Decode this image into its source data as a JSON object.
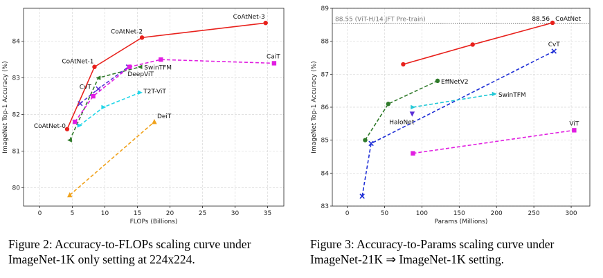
{
  "figures": [
    {
      "caption": "Figure 2: Accuracy-to-FLOPs scaling curve under ImageNet-1K only setting at 224x224.",
      "chart_data": {
        "type": "line",
        "xlabel": "FLOPs (Billions)",
        "ylabel": "ImageNet Top-1 Accuracy (%)",
        "xlim": [
          -2.5,
          37.5
        ],
        "ylim": [
          79.5,
          84.9
        ],
        "xticks": [
          0,
          5,
          10,
          15,
          20,
          25,
          30,
          35
        ],
        "yticks": [
          80,
          81,
          82,
          83,
          84
        ],
        "grid": true,
        "series": [
          {
            "name": "CoAtNet",
            "color": "#e8211c",
            "dash": "",
            "marker": "circle",
            "x": [
              4.2,
              8.4,
              15.7,
              34.7
            ],
            "y": [
              81.6,
              83.3,
              84.1,
              84.5
            ]
          },
          {
            "name": "DeepViT",
            "color": "#2f7a2a",
            "dash": "5,3",
            "marker": "triangle-left",
            "x": [
              4.6,
              9.0,
              15.4
            ],
            "y": [
              81.3,
              83.0,
              83.3
            ]
          },
          {
            "name": "CvT",
            "color": "#5b2fd6",
            "dash": "5,3",
            "marker": "x",
            "x": [
              6.2,
              9.0,
              13.6
            ],
            "y": [
              82.3,
              82.7,
              83.3
            ]
          },
          {
            "name": "SwinTFM",
            "color": "#e11ee1",
            "dash": "5,3",
            "marker": "square",
            "x": [
              5.4,
              8.2,
              13.8,
              18.6,
              36.0
            ],
            "y": [
              81.8,
              82.5,
              83.3,
              83.5,
              83.4
            ]
          },
          {
            "name": "T2T-ViT",
            "color": "#22d6e8",
            "dash": "5,3",
            "marker": "triangle-right",
            "x": [
              6.1,
              9.8,
              15.4
            ],
            "y": [
              81.7,
              82.2,
              82.6
            ]
          },
          {
            "name": "DeiT",
            "color": "#f0a21c",
            "dash": "5,3",
            "marker": "triangle-up",
            "x": [
              4.6,
              17.6
            ],
            "y": [
              79.8,
              81.8
            ]
          }
        ],
        "annotations": [
          {
            "text": "CoAtNet-3",
            "x": 34.7,
            "y": 84.5,
            "anchor": "end",
            "dx": -1,
            "dy": -6
          },
          {
            "text": "CoAtNet-2",
            "x": 15.7,
            "y": 84.1,
            "anchor": "end",
            "dx": 1,
            "dy": -6
          },
          {
            "text": "CoAtNet-1",
            "x": 8.4,
            "y": 83.3,
            "anchor": "end",
            "dx": -1,
            "dy": -5
          },
          {
            "text": "CoAtNet-0",
            "x": 4.2,
            "y": 81.6,
            "anchor": "end",
            "dx": -2,
            "dy": -2
          },
          {
            "text": "CaiT",
            "x": 36.0,
            "y": 83.4,
            "anchor": "middle",
            "dx": -1,
            "dy": -7
          },
          {
            "text": "SwinTFM",
            "x": 15.4,
            "y": 83.3,
            "anchor": "start",
            "dx": 6,
            "dy": 4
          },
          {
            "text": "DeepViT",
            "x": 13.6,
            "y": 83.05,
            "anchor": "start",
            "dx": -1,
            "dy": 0
          },
          {
            "text": "CvT",
            "x": 6.2,
            "y": 82.7,
            "anchor": "start",
            "dx": -1,
            "dy": 0
          },
          {
            "text": "T2T-ViT",
            "x": 15.4,
            "y": 82.6,
            "anchor": "start",
            "dx": 5,
            "dy": 1
          },
          {
            "text": "DeiT",
            "x": 17.6,
            "y": 81.8,
            "anchor": "start",
            "dx": 4,
            "dy": -5
          }
        ]
      }
    },
    {
      "caption": "Figure 3: Accuracy-to-Params scaling curve under ImageNet-21K ⇒ ImageNet-1K setting.",
      "chart_data": {
        "type": "line",
        "xlabel": "Params (Millions)",
        "ylabel": "ImageNet Top-1 Accuracy (%)",
        "xlim": [
          -20,
          325
        ],
        "ylim": [
          83,
          89
        ],
        "xticks": [
          0,
          50,
          100,
          150,
          200,
          250,
          300
        ],
        "yticks": [
          83,
          84,
          85,
          86,
          87,
          88,
          89
        ],
        "grid": true,
        "reference_line": {
          "y": 88.55,
          "label": "88.55 (ViT-H/14 JFT Pre-train)",
          "color": "#555555"
        },
        "series": [
          {
            "name": "CoAtNet",
            "color": "#e8211c",
            "dash": "",
            "marker": "circle",
            "x": [
              75,
              168,
              275
            ],
            "y": [
              87.3,
              87.9,
              88.56
            ]
          },
          {
            "name": "EffNetV2",
            "color": "#2f7a2a",
            "dash": "5,3",
            "marker": "circle",
            "x": [
              24,
              55,
              121
            ],
            "y": [
              85.0,
              86.1,
              86.8
            ]
          },
          {
            "name": "CvT",
            "color": "#1f2fd6",
            "dash": "5,3",
            "marker": "x",
            "x": [
              20,
              32,
              277
            ],
            "y": [
              83.3,
              84.9,
              87.7
            ]
          },
          {
            "name": "SwinTFM",
            "color": "#22c8d6",
            "dash": "5,3",
            "marker": "triangle-right",
            "x": [
              88,
              197
            ],
            "y": [
              86.0,
              86.4
            ]
          },
          {
            "name": "HaloNet",
            "color": "#5b2fd6",
            "dash": "",
            "marker": "triangle-down",
            "x": [
              87
            ],
            "y": [
              85.8
            ]
          },
          {
            "name": "ViT",
            "color": "#e11ee1",
            "dash": "5,3",
            "marker": "square",
            "x": [
              88,
              304
            ],
            "y": [
              84.6,
              85.3
            ]
          }
        ],
        "annotations": [
          {
            "text": "88.56",
            "x": 275,
            "y": 88.56,
            "anchor": "end",
            "dx": -4,
            "dy": -3,
            "color": "#e8211c"
          },
          {
            "text": "CoAtNet",
            "x": 275,
            "y": 88.56,
            "anchor": "start",
            "dx": 4,
            "dy": -3
          },
          {
            "text": "CvT",
            "x": 277,
            "y": 87.7,
            "anchor": "middle",
            "dx": 0,
            "dy": -7
          },
          {
            "text": "EffNetV2",
            "x": 121,
            "y": 86.8,
            "anchor": "start",
            "dx": 5,
            "dy": 4
          },
          {
            "text": "SwinTFM",
            "x": 197,
            "y": 86.4,
            "anchor": "start",
            "dx": 6,
            "dy": 4
          },
          {
            "text": "HaloNet",
            "x": 87,
            "y": 85.8,
            "anchor": "end",
            "dx": 3,
            "dy": 15
          },
          {
            "text": "ViT",
            "x": 304,
            "y": 85.3,
            "anchor": "middle",
            "dx": 0,
            "dy": -7
          }
        ]
      }
    }
  ]
}
